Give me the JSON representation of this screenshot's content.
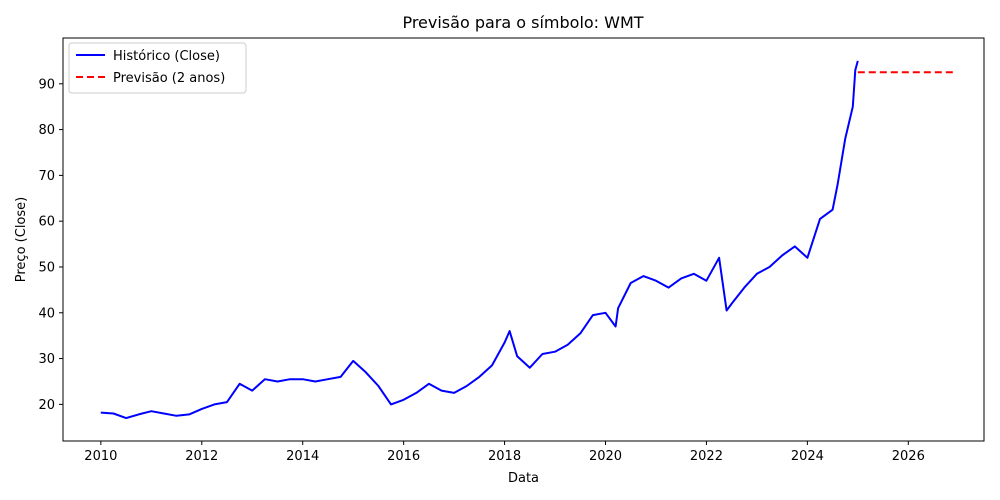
{
  "chart_data": {
    "type": "line",
    "title": "Previsão para o símbolo: WMT",
    "xlabel": "Data",
    "ylabel": "Preço (Close)",
    "xlim": [
      2009.25,
      2027.5
    ],
    "ylim": [
      12,
      100
    ],
    "x_ticks": [
      2010,
      2012,
      2014,
      2016,
      2018,
      2020,
      2022,
      2024,
      2026
    ],
    "x_tick_labels": [
      "2010",
      "2012",
      "2014",
      "2016",
      "2018",
      "2020",
      "2022",
      "2024",
      "2026"
    ],
    "y_ticks": [
      20,
      30,
      40,
      50,
      60,
      70,
      80,
      90
    ],
    "y_tick_labels": [
      "20",
      "30",
      "40",
      "50",
      "60",
      "70",
      "80",
      "90"
    ],
    "grid": false,
    "legend_position": "top-left",
    "series": [
      {
        "name": "Histórico (Close)",
        "color": "#0000ff",
        "style": "solid",
        "x": [
          2010.0,
          2010.25,
          2010.5,
          2010.75,
          2011.0,
          2011.25,
          2011.5,
          2011.75,
          2012.0,
          2012.25,
          2012.5,
          2012.75,
          2013.0,
          2013.25,
          2013.5,
          2013.75,
          2014.0,
          2014.25,
          2014.5,
          2014.75,
          2015.0,
          2015.25,
          2015.5,
          2015.75,
          2016.0,
          2016.25,
          2016.5,
          2016.75,
          2017.0,
          2017.25,
          2017.5,
          2017.75,
          2018.0,
          2018.1,
          2018.25,
          2018.5,
          2018.75,
          2019.0,
          2019.25,
          2019.5,
          2019.75,
          2020.0,
          2020.2,
          2020.25,
          2020.5,
          2020.75,
          2021.0,
          2021.25,
          2021.5,
          2021.75,
          2022.0,
          2022.25,
          2022.4,
          2022.5,
          2022.75,
          2023.0,
          2023.25,
          2023.5,
          2023.75,
          2024.0,
          2024.25,
          2024.5,
          2024.6,
          2024.75,
          2024.9,
          2024.95,
          2025.0
        ],
        "y": [
          18.2,
          18.0,
          17.0,
          17.8,
          18.5,
          18.0,
          17.5,
          17.8,
          19.0,
          20.0,
          20.5,
          24.5,
          23.0,
          25.5,
          25.0,
          25.5,
          25.5,
          25.0,
          25.5,
          26.0,
          29.5,
          27.0,
          24.0,
          20.0,
          21.0,
          22.5,
          24.5,
          23.0,
          22.5,
          24.0,
          26.0,
          28.5,
          33.5,
          36.0,
          30.5,
          28.0,
          31.0,
          31.5,
          33.0,
          35.5,
          39.5,
          40.0,
          37.0,
          41.0,
          46.5,
          48.0,
          47.0,
          45.5,
          47.5,
          48.5,
          47.0,
          52.0,
          40.5,
          42.0,
          45.5,
          48.5,
          50.0,
          52.5,
          54.5,
          52.0,
          60.5,
          62.5,
          68.0,
          78.0,
          85.0,
          93.0,
          95.0
        ]
      },
      {
        "name": "Previsão (2 anos)",
        "color": "#ff0000",
        "style": "dashed",
        "x": [
          2025.0,
          2026.9
        ],
        "y": [
          92.5,
          92.5
        ]
      }
    ]
  }
}
